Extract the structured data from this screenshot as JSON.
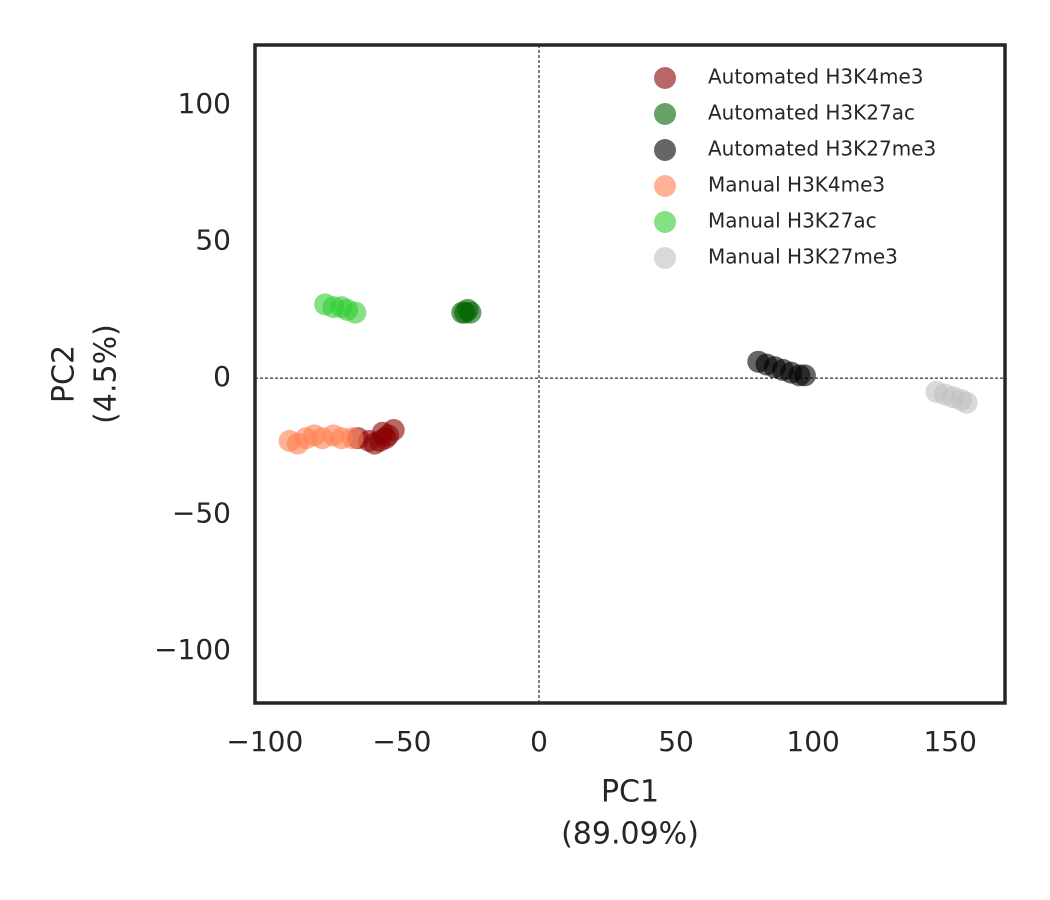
{
  "chart_data": {
    "type": "scatter",
    "xlabel_lines": [
      "PC1",
      "(89.09%)"
    ],
    "ylabel_lines": [
      "PC2",
      "(4.5%)"
    ],
    "xlim": [
      -103.6,
      170
    ],
    "ylim": [
      -119,
      122
    ],
    "xticks": [
      {
        "value": -100,
        "label": "−100"
      },
      {
        "value": -50,
        "label": "−50"
      },
      0,
      50,
      100,
      150
    ],
    "yticks": [
      {
        "value": -100,
        "label": "−100"
      },
      {
        "value": -50,
        "label": "−50"
      },
      0,
      50,
      100
    ],
    "reference_lines": true,
    "legend": "upper right",
    "opacity": 0.6,
    "series": [
      {
        "name": "Automated H3K4me3",
        "color": "#8b0000",
        "x": [
          -66,
          -62,
          -60,
          -58,
          -56,
          -55,
          -53,
          -57
        ],
        "values": [
          -22,
          -23,
          -24,
          -23,
          -22,
          -21,
          -19,
          -20
        ]
      },
      {
        "name": "Automated H3K27ac",
        "color": "#006400",
        "x": [
          -28,
          -27,
          -26,
          -25
        ],
        "values": [
          24,
          24,
          25,
          24
        ]
      },
      {
        "name": "Automated H3K27me3",
        "color": "#000000",
        "x": [
          80,
          83,
          86,
          89,
          92,
          95,
          97
        ],
        "values": [
          6,
          5,
          4,
          3,
          2,
          1,
          1
        ]
      },
      {
        "name": "Manual H3K4me3",
        "color": "#ff7f50",
        "x": [
          -91,
          -88,
          -85,
          -82,
          -79,
          -75,
          -72,
          -68
        ],
        "values": [
          -23,
          -24,
          -22,
          -21,
          -22,
          -21,
          -22,
          -22
        ]
      },
      {
        "name": "Manual H3K27ac",
        "color": "#32cd32",
        "x": [
          -78,
          -75,
          -72,
          -70,
          -67
        ],
        "values": [
          27,
          26,
          26,
          25,
          24
        ]
      },
      {
        "name": "Manual H3K27me3",
        "color": "#c0c0c0",
        "x": [
          145,
          148,
          151,
          154,
          156
        ],
        "values": [
          -5,
          -6,
          -7,
          -8,
          -9
        ]
      }
    ]
  }
}
